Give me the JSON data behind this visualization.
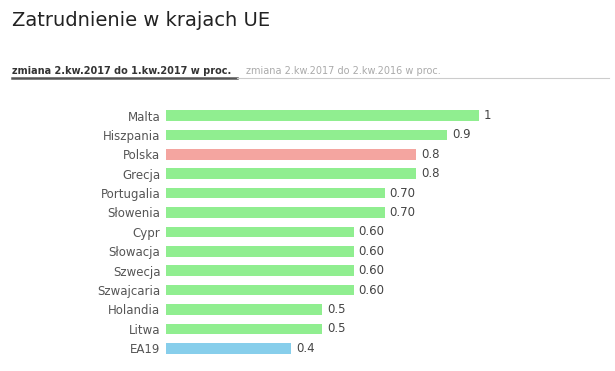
{
  "title": "Zatrudnienie w krajach UE",
  "legend_label1": "zmiana 2.kw.2017 do 1.kw.2017 w proc.",
  "legend_label2": "zmiana 2.kw.2017 do 2.kw.2016 w proc.",
  "categories": [
    "EA19",
    "Litwa",
    "Holandia",
    "Szwajcaria",
    "Szwecja",
    "Słowacja",
    "Cypr",
    "Słowenia",
    "Portugalia",
    "Grecja",
    "Polska",
    "Hiszpania",
    "Malta"
  ],
  "values": [
    0.4,
    0.5,
    0.5,
    0.6,
    0.6,
    0.6,
    0.6,
    0.7,
    0.7,
    0.8,
    0.8,
    0.9,
    1.0
  ],
  "bar_colors": [
    "#87CEEB",
    "#90EE90",
    "#90EE90",
    "#90EE90",
    "#90EE90",
    "#90EE90",
    "#90EE90",
    "#90EE90",
    "#90EE90",
    "#90EE90",
    "#F4A5A0",
    "#90EE90",
    "#90EE90"
  ],
  "value_labels": [
    "0.4",
    "0.5",
    "0.5",
    "0.60",
    "0.60",
    "0.60",
    "0.60",
    "0.70",
    "0.70",
    "0.8",
    "0.8",
    "0.9",
    "1"
  ],
  "xlim": [
    0,
    1.2
  ],
  "background_color": "#ffffff",
  "title_fontsize": 14,
  "label_fontsize": 8.5,
  "value_fontsize": 8.5,
  "legend1_color": "#333333",
  "legend2_color": "#aaaaaa",
  "bar_height": 0.55
}
